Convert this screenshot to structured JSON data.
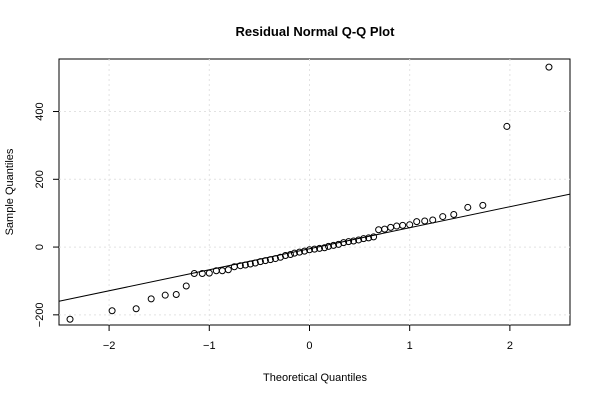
{
  "chart_data": {
    "type": "scatter",
    "title": "Residual Normal Q-Q Plot",
    "xlabel": "Theoretical Quantiles",
    "ylabel": "Sample Quantiles",
    "xlim": [
      -2.5,
      2.6
    ],
    "ylim": [
      -230,
      555
    ],
    "x_ticks": [
      -2,
      -1,
      0,
      1,
      2
    ],
    "x_tick_labels": [
      "−2",
      "−1",
      "0",
      "1",
      "2"
    ],
    "y_ticks": [
      -200,
      0,
      200,
      400
    ],
    "y_tick_labels": [
      "−200",
      "0",
      "200",
      "400"
    ],
    "grid": true,
    "reference_line": {
      "intercept": -5,
      "slope": 62
    },
    "points": {
      "x": [
        -2.39,
        -1.97,
        -1.73,
        -1.58,
        -1.44,
        -1.33,
        -1.23,
        -1.15,
        -1.07,
        -1.0,
        -0.93,
        -0.87,
        -0.81,
        -0.75,
        -0.69,
        -0.64,
        -0.59,
        -0.54,
        -0.49,
        -0.44,
        -0.39,
        -0.34,
        -0.29,
        -0.24,
        -0.19,
        -0.15,
        -0.1,
        -0.05,
        0.0,
        0.05,
        0.1,
        0.15,
        0.19,
        0.24,
        0.29,
        0.34,
        0.39,
        0.44,
        0.49,
        0.54,
        0.59,
        0.64,
        0.69,
        0.75,
        0.81,
        0.87,
        0.93,
        1.0,
        1.07,
        1.15,
        1.23,
        1.33,
        1.44,
        1.58,
        1.73,
        1.97,
        2.39
      ],
      "y": [
        -213,
        -188,
        -182,
        -153,
        -142,
        -140,
        -115,
        -78,
        -78,
        -77,
        -70,
        -70,
        -67,
        -58,
        -55,
        -53,
        -50,
        -47,
        -43,
        -40,
        -37,
        -34,
        -30,
        -25,
        -22,
        -18,
        -15,
        -12,
        -8,
        -6,
        -4,
        -2,
        2,
        5,
        8,
        13,
        16,
        18,
        21,
        25,
        27,
        30,
        51,
        53,
        58,
        62,
        64,
        66,
        75,
        77,
        80,
        90,
        96,
        117,
        123,
        356,
        531
      ]
    }
  }
}
